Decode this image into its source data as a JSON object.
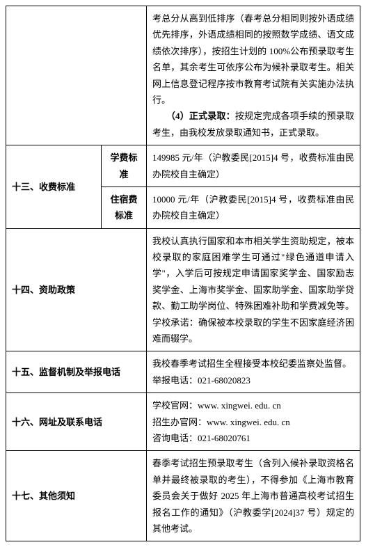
{
  "row0": {
    "content": "考总分从高到低排序（春考总分相同则按外语成绩优先排序，外语成绩相同的按照数学成绩、语文成绩依次排序），按招生计划的 100%公布预录取考生名单，其余考生可依序公布为候补录取考生。相关网上信息登记程序按市教育考试院有关实施办法执行。",
    "bold_label": "（4）正式录取：",
    "content2": "按规定完成各项手续的预录取考生，由我校发放录取通知书，正式录取。"
  },
  "row13": {
    "label": "十三、收费标准",
    "sub1_label": "学费标准",
    "sub1_content": "149985 元/年（沪教委民[2015]4 号，收费标准由民办院校自主确定）",
    "sub2_label": "住宿费标准",
    "sub2_content": "10000 元/年（沪教委民[2015]4 号，收费标准由民办院校自主确定）"
  },
  "row14": {
    "label": "十四、资助政策",
    "content": "我校认真执行国家和本市相关学生资助规定，被本校录取的家庭困难学生可通过\"绿色通道申请入学\"，入学后可按规定申请国家奖学金、国家励志奖学金、上海市奖学金、国家助学金、国家助学贷款、勤工助学岗位、特殊困难补助和学费减免等。学校承诺：确保被本校录取的学生不因家庭经济困难而辍学。"
  },
  "row15": {
    "label": "十五、监督机制及举报电话",
    "line1": "我校春季考试招生全程接受本校纪委监察处监督。",
    "line2": "举报电话：021-68020823"
  },
  "row16": {
    "label": "十六、网址及联系电话",
    "line1": "学校官网：www. xingwei. edu. cn",
    "line2": "招生办官网：www. xingwei. edu. cn",
    "line3": "咨询电话：021-68020761"
  },
  "row17": {
    "label": "十七、其他须知",
    "content": "春季考试招生预录取考生（含列入候补录取资格名单并最终被录取的考生），不得参加《上海市教育委员会关于做好 2025 年上海市普通高校考试招生报名工作的通知》（沪教委学[2024]37 号）规定的其他考试。"
  }
}
